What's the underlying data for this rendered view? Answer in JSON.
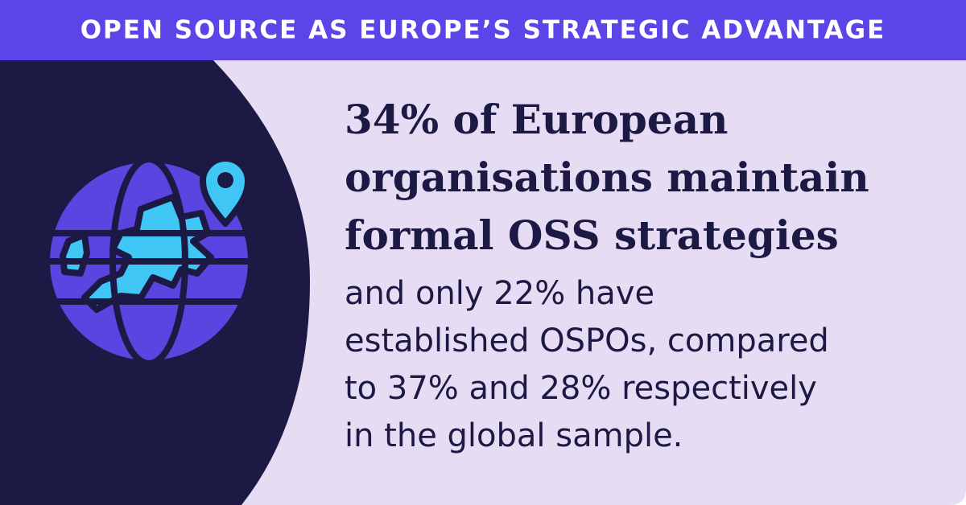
{
  "header": {
    "title": "OPEN SOURCE AS EUROPE’S STRATEGIC ADVANTAGE"
  },
  "headline": {
    "lines": [
      "34% of European",
      "organisations maintain",
      "formal OSS strategies"
    ]
  },
  "body": {
    "lines": [
      "and only 22% have",
      "established OSPOs, compared",
      "to 37% and 28% respectively",
      "in the global sample."
    ]
  }
}
